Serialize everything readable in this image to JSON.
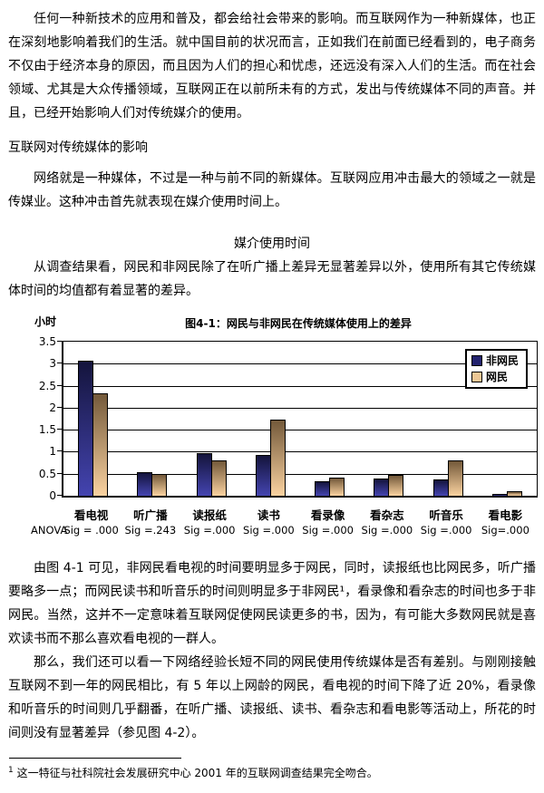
{
  "page": {
    "p1": "任何一种新技术的应用和普及，都会给社会带来的影响。而互联网作为一种新媒体，也正在深刻地影响着我们的生活。就中国目前的状况而言，正如我们在前面已经看到的，电子商务不仅由于经济本身的原因，而且因为人们的担心和忧虑，还远没有深入人们的生活。而在社会领域、尤其是大众传播领域，互联网正在以前所未有的方式，发出与传统媒体不同的声音。并且，已经开始影响人们对传统媒介的使用。",
    "section_heading": "互联网对传统媒体的影响",
    "p2": "网络就是一种媒体，不过是一种与前不同的新媒体。互联网应用冲击最大的领域之一就是传媒业。这种冲击首先就表现在媒介使用时间上。",
    "subheading": "媒介使用时间",
    "p3": "从调查结果看，网民和非网民除了在听广播上差异无显著差异以外，使用所有其它传统媒体时间的均值都有着显著的差异。",
    "p4": "由图 4-1 可见，非网民看电视的时间要明显多于网民，同时，读报纸也比网民多，听广播要略多一点；而网民读书和听音乐的时间则明显多于非网民¹，看录像和看杂志的时间也多于非网民。当然，这并不一定意味着互联网促使网民读更多的书，因为，有可能大多数网民就是喜欢读书而不那么喜欢看电视的一群人。",
    "p5": "那么，我们还可以看一下网络经验长短不同的网民使用传统媒体是否有差别。与刚刚接触互联网不到一年的网民相比，有 5 年以上网龄的网民，看电视的时间下降了近 20%，看录像和听音乐的时间则几乎翻番，在听广播、读报纸、读书、看杂志和看电影等活动上，所花的时间则没有显著差异（参见图 4-2）。",
    "footnote_marker": "1",
    "footnote_text": "这一特征与社科院社会发展研究中心 2001 年的互联网调查结果完全吻合。"
  },
  "chart_data": {
    "type": "bar",
    "title": "图4-1：网民与非网民在传统媒体使用上的差异",
    "ylabel": "小时",
    "xlabel": "",
    "categories": [
      "看电视",
      "听广播",
      "读报纸",
      "读书",
      "看录像",
      "看杂志",
      "听音乐",
      "看电影"
    ],
    "series": [
      {
        "name": "非网民",
        "values": [
          3.05,
          0.52,
          0.95,
          0.9,
          0.3,
          0.38,
          0.35,
          0.03
        ],
        "color_top": "#14143c",
        "color_bottom": "#4444b0",
        "legend_color": "#22226e"
      },
      {
        "name": "网民",
        "values": [
          2.3,
          0.48,
          0.78,
          1.7,
          0.4,
          0.45,
          0.78,
          0.09
        ],
        "color_top": "#73593a",
        "color_bottom": "#fad2a0",
        "legend_color": "#edc795"
      }
    ],
    "anova_label": "ANOVA",
    "anova_sig": [
      "Sig = .000",
      "Sig =.243",
      "Sig =.000",
      "Sig =.000",
      "Sig =.000",
      "Sig =.000",
      "Sig =.000",
      "Sig=.000"
    ],
    "ylim": [
      0,
      3.5
    ],
    "yticks": [
      0,
      0.5,
      1,
      1.5,
      2,
      2.5,
      3,
      3.5
    ],
    "ytick_labels": [
      "0",
      "0.5",
      "1",
      "1.5",
      "2",
      "2.5",
      "3",
      "3.5"
    ],
    "legend_position": "top-right",
    "grid": true
  }
}
